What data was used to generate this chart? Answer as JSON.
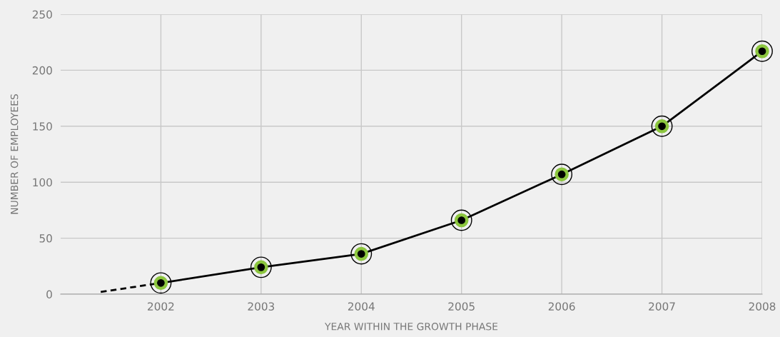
{
  "chart_data": {
    "type": "line",
    "xlabel": "YEAR WITHIN THE GROWTH PHASE",
    "ylabel": "NUMBER OF EMPLOYEES",
    "xlim": [
      2001,
      2008
    ],
    "xticks": [
      2002,
      2003,
      2004,
      2005,
      2006,
      2007,
      2008
    ],
    "ylim": [
      0,
      250
    ],
    "yticks": [
      0,
      50,
      100,
      150,
      200,
      250
    ],
    "grid": true,
    "legend": false,
    "series": [
      {
        "color": "#000000",
        "marker": "circle",
        "line_style": "solid",
        "x": [
          2002,
          2003,
          2004,
          2005,
          2006,
          2007,
          2008
        ],
        "values": [
          10,
          24,
          36,
          66,
          107,
          150,
          217
        ]
      },
      {
        "color": "#000000",
        "line_style": "dashed",
        "x": [
          2001.4,
          2002
        ],
        "values": [
          2,
          10
        ]
      }
    ]
  }
}
